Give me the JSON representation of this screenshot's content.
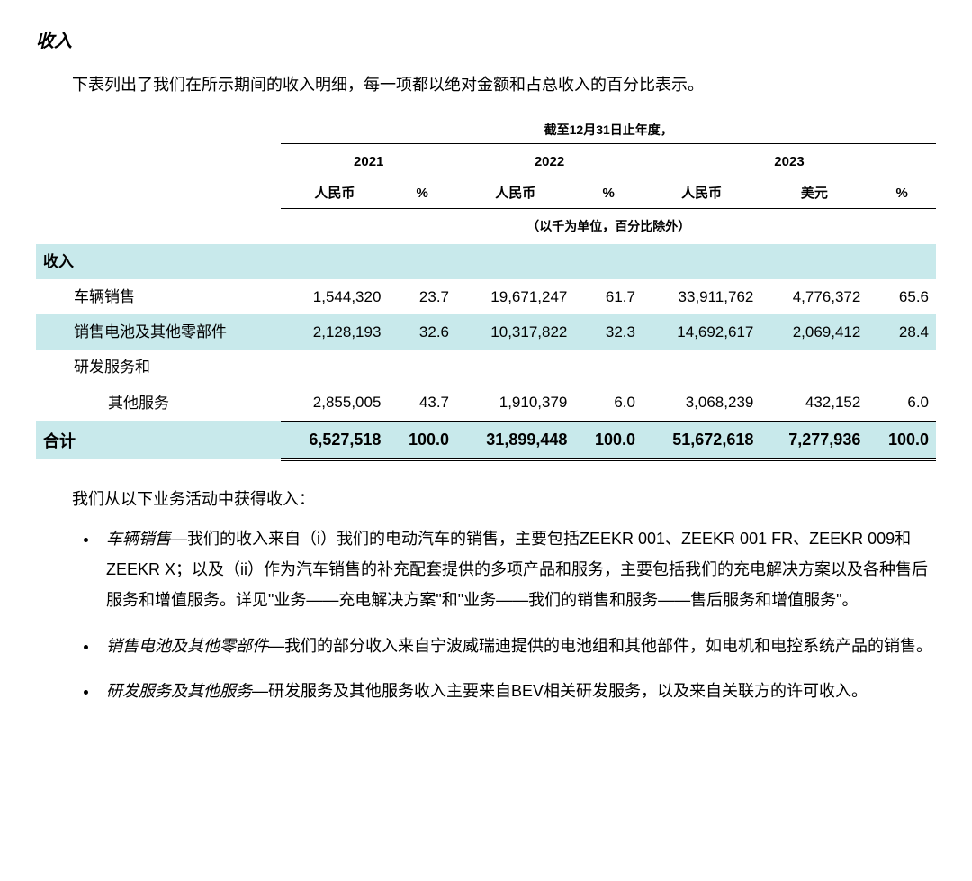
{
  "section_title": "收入",
  "intro": "下表列出了我们在所示期间的收入明细，每一项都以绝对金额和占总收入的百分比表示。",
  "table": {
    "caption": "截至12月31日止年度，",
    "years": [
      "2021",
      "2022",
      "2023"
    ],
    "col_labels": {
      "rmb": "人民币",
      "pct": "%",
      "usd": "美元"
    },
    "unit_note": "（以千为单位，百分比除外）",
    "header_row_label": "收入",
    "rows": [
      {
        "label": "车辆销售",
        "cells": [
          "1,544,320",
          "23.7",
          "19,671,247",
          "61.7",
          "33,911,762",
          "4,776,372",
          "65.6"
        ]
      },
      {
        "label": "销售电池及其他零部件",
        "cells": [
          "2,128,193",
          "32.6",
          "10,317,822",
          "32.3",
          "14,692,617",
          "2,069,412",
          "28.4"
        ],
        "highlight": true
      },
      {
        "label": "研发服务和",
        "label2": "其他服务",
        "cells": [
          "2,855,005",
          "43.7",
          "1,910,379",
          "6.0",
          "3,068,239",
          "432,152",
          "6.0"
        ]
      }
    ],
    "total": {
      "label": "合计",
      "cells": [
        "6,527,518",
        "100.0",
        "31,899,448",
        "100.0",
        "51,672,618",
        "7,277,936",
        "100.0"
      ]
    },
    "highlight_color": "#c8e9eb"
  },
  "after_para": "我们从以下业务活动中获得收入：",
  "bullets": [
    {
      "lead": "车辆销售",
      "text": "—我们的收入来自（i）我们的电动汽车的销售，主要包括ZEEKR 001、ZEEKR 001 FR、ZEEKR 009和ZEEKR X；以及（ii）作为汽车销售的补充配套提供的多项产品和服务，主要包括我们的充电解决方案以及各种售后服务和增值服务。详见\"业务——充电解决方案\"和\"业务——我们的销售和服务——售后服务和增值服务\"。"
    },
    {
      "lead": "销售电池及其他零部件",
      "text": "—我们的部分收入来自宁波威瑞迪提供的电池组和其他部件，如电机和电控系统产品的销售。"
    },
    {
      "lead": "研发服务及其他服务",
      "text": "—研发服务及其他服务收入主要来自BEV相关研发服务，以及来自关联方的许可收入。"
    }
  ]
}
